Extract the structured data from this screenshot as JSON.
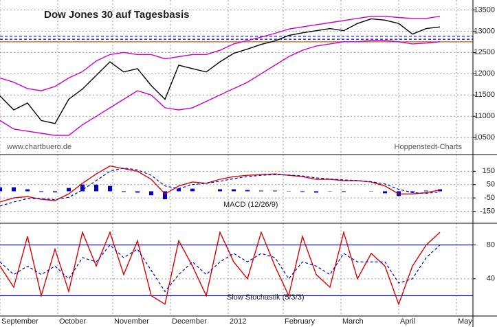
{
  "chart_data": [
    {
      "type": "line",
      "title": "Dow Jones 30 auf Tagesbasis",
      "source": "www.chartbuero.de",
      "credit": "Hoppenstedt-Charts",
      "x": [
        0,
        5,
        10,
        15,
        20,
        25,
        30,
        35,
        40,
        45,
        50,
        55,
        60,
        65,
        70,
        75,
        80,
        85,
        90,
        95,
        100,
        105,
        110,
        115,
        120,
        125,
        130,
        135,
        140,
        145,
        150,
        155,
        160
      ],
      "xlim": [
        0,
        172
      ],
      "ylim": [
        10100,
        13700
      ],
      "yticks": [
        10500,
        11000,
        11500,
        12000,
        12500,
        13000,
        13500
      ],
      "grid": true,
      "series": [
        {
          "color": "#000000",
          "style": "solid",
          "values": [
            11475,
            11150,
            11310,
            10900,
            10830,
            11400,
            11640,
            11960,
            12280,
            12040,
            12120,
            11720,
            11400,
            12200,
            12120,
            12040,
            12280,
            12480,
            12580,
            12690,
            12770,
            12900,
            12960,
            13010,
            13060,
            13010,
            13180,
            13290,
            13260,
            13180,
            12930,
            13060,
            13100
          ]
        },
        {
          "color": "#cc00cc",
          "style": "solid",
          "values": [
            11900,
            11800,
            11650,
            11600,
            11700,
            11900,
            12050,
            12300,
            12450,
            12500,
            12450,
            12450,
            12350,
            12400,
            12450,
            12450,
            12550,
            12700,
            12780,
            12860,
            12950,
            13050,
            13100,
            13150,
            13200,
            13250,
            13300,
            13350,
            13350,
            13320,
            13300,
            13300,
            13350
          ]
        },
        {
          "color": "#cc00cc",
          "style": "solid",
          "values": [
            10900,
            10700,
            10650,
            10600,
            10550,
            10550,
            10800,
            11000,
            11200,
            11400,
            11600,
            11500,
            11200,
            11150,
            11200,
            11350,
            11500,
            11650,
            11800,
            12000,
            12200,
            12400,
            12550,
            12650,
            12700,
            12750,
            12750,
            12780,
            12780,
            12750,
            12700,
            12720,
            12750
          ]
        }
      ],
      "hlines": [
        {
          "value": 12880,
          "color": "#0000cc",
          "style": "dashed"
        },
        {
          "value": 12810,
          "color": "#0000cc",
          "style": "dashed"
        },
        {
          "value": 12750,
          "color": "#b06020",
          "style": "solid"
        }
      ]
    },
    {
      "type": "line",
      "label": "MACD (12/26/9)",
      "x": [
        0,
        5,
        10,
        15,
        20,
        25,
        30,
        35,
        40,
        45,
        50,
        55,
        60,
        65,
        70,
        75,
        80,
        85,
        90,
        95,
        100,
        105,
        110,
        115,
        120,
        125,
        130,
        135,
        140,
        145,
        150,
        155,
        160
      ],
      "xlim": [
        0,
        172
      ],
      "ylim": [
        -240,
        260
      ],
      "yticks": [
        -150,
        -50,
        50,
        150
      ],
      "series": [
        {
          "color": "#0000cc",
          "style": "bar",
          "values": [
            30,
            30,
            15,
            -5,
            -8,
            25,
            50,
            50,
            40,
            -5,
            -10,
            -30,
            -60,
            20,
            20,
            0,
            15,
            15,
            10,
            5,
            5,
            -2,
            -5,
            -10,
            -2,
            -5,
            0,
            -2,
            -15,
            -35,
            -10,
            5,
            15
          ]
        },
        {
          "color": "#dd0000",
          "style": "solid",
          "values": [
            -80,
            -50,
            -40,
            -60,
            -70,
            -20,
            60,
            130,
            190,
            170,
            150,
            90,
            -20,
            40,
            70,
            60,
            90,
            110,
            120,
            125,
            130,
            120,
            110,
            90,
            90,
            80,
            80,
            70,
            40,
            -20,
            -20,
            -10,
            10
          ]
        },
        {
          "color": "#0000cc",
          "style": "dashed",
          "values": [
            -110,
            -80,
            -55,
            -55,
            -62,
            -45,
            10,
            80,
            150,
            175,
            160,
            120,
            40,
            20,
            50,
            60,
            75,
            95,
            110,
            120,
            125,
            122,
            115,
            100,
            92,
            85,
            80,
            72,
            55,
            15,
            -10,
            -15,
            -5
          ]
        }
      ]
    },
    {
      "type": "line",
      "label": "Slow Stochastik (5/3/3)",
      "x": [
        0,
        5,
        10,
        15,
        20,
        25,
        30,
        35,
        40,
        45,
        50,
        55,
        60,
        65,
        70,
        75,
        80,
        85,
        90,
        95,
        100,
        105,
        110,
        115,
        120,
        125,
        130,
        135,
        140,
        145,
        150,
        155,
        160
      ],
      "xlim": [
        0,
        172
      ],
      "xticks": [
        {
          "value": 0,
          "label": "September"
        },
        {
          "value": 21,
          "label": "October"
        },
        {
          "value": 41,
          "label": "November"
        },
        {
          "value": 62,
          "label": "December"
        },
        {
          "value": 83,
          "label": "2012"
        },
        {
          "value": 103,
          "label": "February"
        },
        {
          "value": 124,
          "label": "March"
        },
        {
          "value": 145,
          "label": "April"
        },
        {
          "value": 166,
          "label": "May"
        }
      ],
      "ylim": [
        -4,
        104
      ],
      "yticks": [
        40,
        80
      ],
      "series": [
        {
          "color": "#dd0000",
          "style": "solid",
          "values": [
            55,
            30,
            90,
            20,
            75,
            25,
            95,
            55,
            95,
            45,
            85,
            20,
            10,
            85,
            55,
            20,
            95,
            60,
            40,
            95,
            55,
            20,
            90,
            45,
            30,
            95,
            40,
            70,
            55,
            10,
            55,
            80,
            95
          ]
        },
        {
          "color": "#0000cc",
          "style": "dashed",
          "values": [
            60,
            45,
            55,
            45,
            55,
            40,
            65,
            60,
            80,
            65,
            75,
            50,
            25,
            45,
            60,
            45,
            60,
            70,
            60,
            70,
            65,
            40,
            60,
            55,
            45,
            70,
            60,
            60,
            60,
            35,
            40,
            65,
            80
          ]
        }
      ],
      "hlines": [
        {
          "value": 80,
          "color": "#0000aa",
          "style": "solid"
        },
        {
          "value": 20,
          "color": "#0000aa",
          "style": "solid"
        }
      ]
    }
  ]
}
